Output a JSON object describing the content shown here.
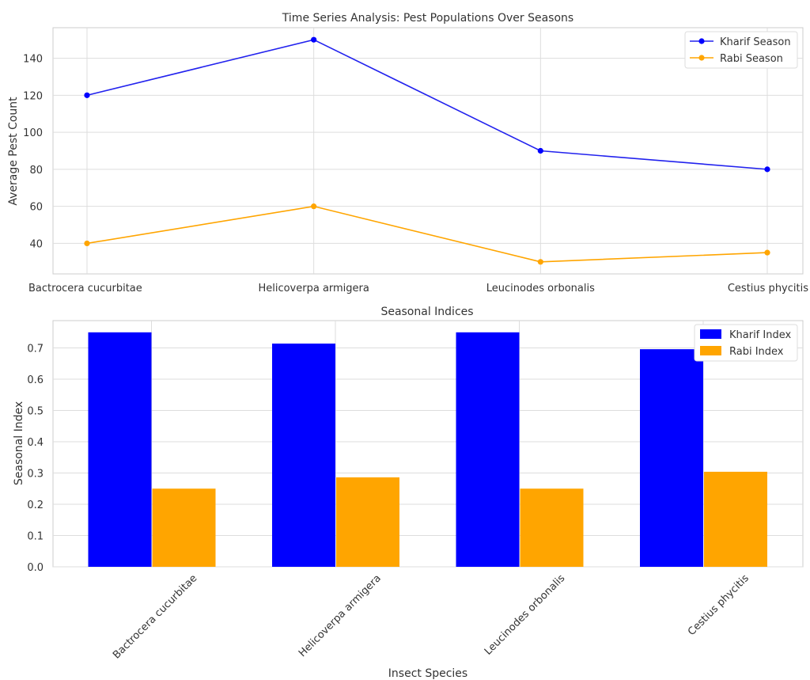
{
  "colors": {
    "kharif": "#0000FF",
    "kharif_line": "#2222EE",
    "rabi": "#FFA500",
    "grid": "#DDDDDD",
    "axis": "#CCCCCC",
    "text": "#333333"
  },
  "chart_data": [
    {
      "type": "line",
      "title": "Time Series Analysis: Pest Populations Over Seasons",
      "xlabel": "",
      "ylabel": "Average Pest Count",
      "categories": [
        "Bactrocera cucurbitae",
        "Helicoverpa armigera",
        "Leucinodes orbonalis",
        "Cestius phycitis"
      ],
      "series": [
        {
          "name": "Kharif Season",
          "values": [
            120,
            150,
            90,
            80
          ]
        },
        {
          "name": "Rabi Season",
          "values": [
            40,
            60,
            30,
            35
          ]
        }
      ],
      "ylim": [
        23.5,
        156.5
      ],
      "yticks": [
        40,
        60,
        80,
        100,
        120,
        140
      ],
      "grid": true,
      "legend": "top-right"
    },
    {
      "type": "bar",
      "title": "Seasonal Indices",
      "xlabel": "Insect Species",
      "ylabel": "Seasonal Index",
      "categories": [
        "Bactrocera cucurbitae",
        "Helicoverpa armigera",
        "Leucinodes orbonalis",
        "Cestius phycitis"
      ],
      "series": [
        {
          "name": "Kharif Index",
          "values": [
            0.75,
            0.714,
            0.75,
            0.696
          ]
        },
        {
          "name": "Rabi Index",
          "values": [
            0.25,
            0.286,
            0.25,
            0.304
          ]
        }
      ],
      "ylim": [
        0,
        0.7875
      ],
      "yticks": [
        0.0,
        0.1,
        0.2,
        0.3,
        0.4,
        0.5,
        0.6,
        0.7
      ],
      "grid": true,
      "legend": "top-right"
    }
  ]
}
